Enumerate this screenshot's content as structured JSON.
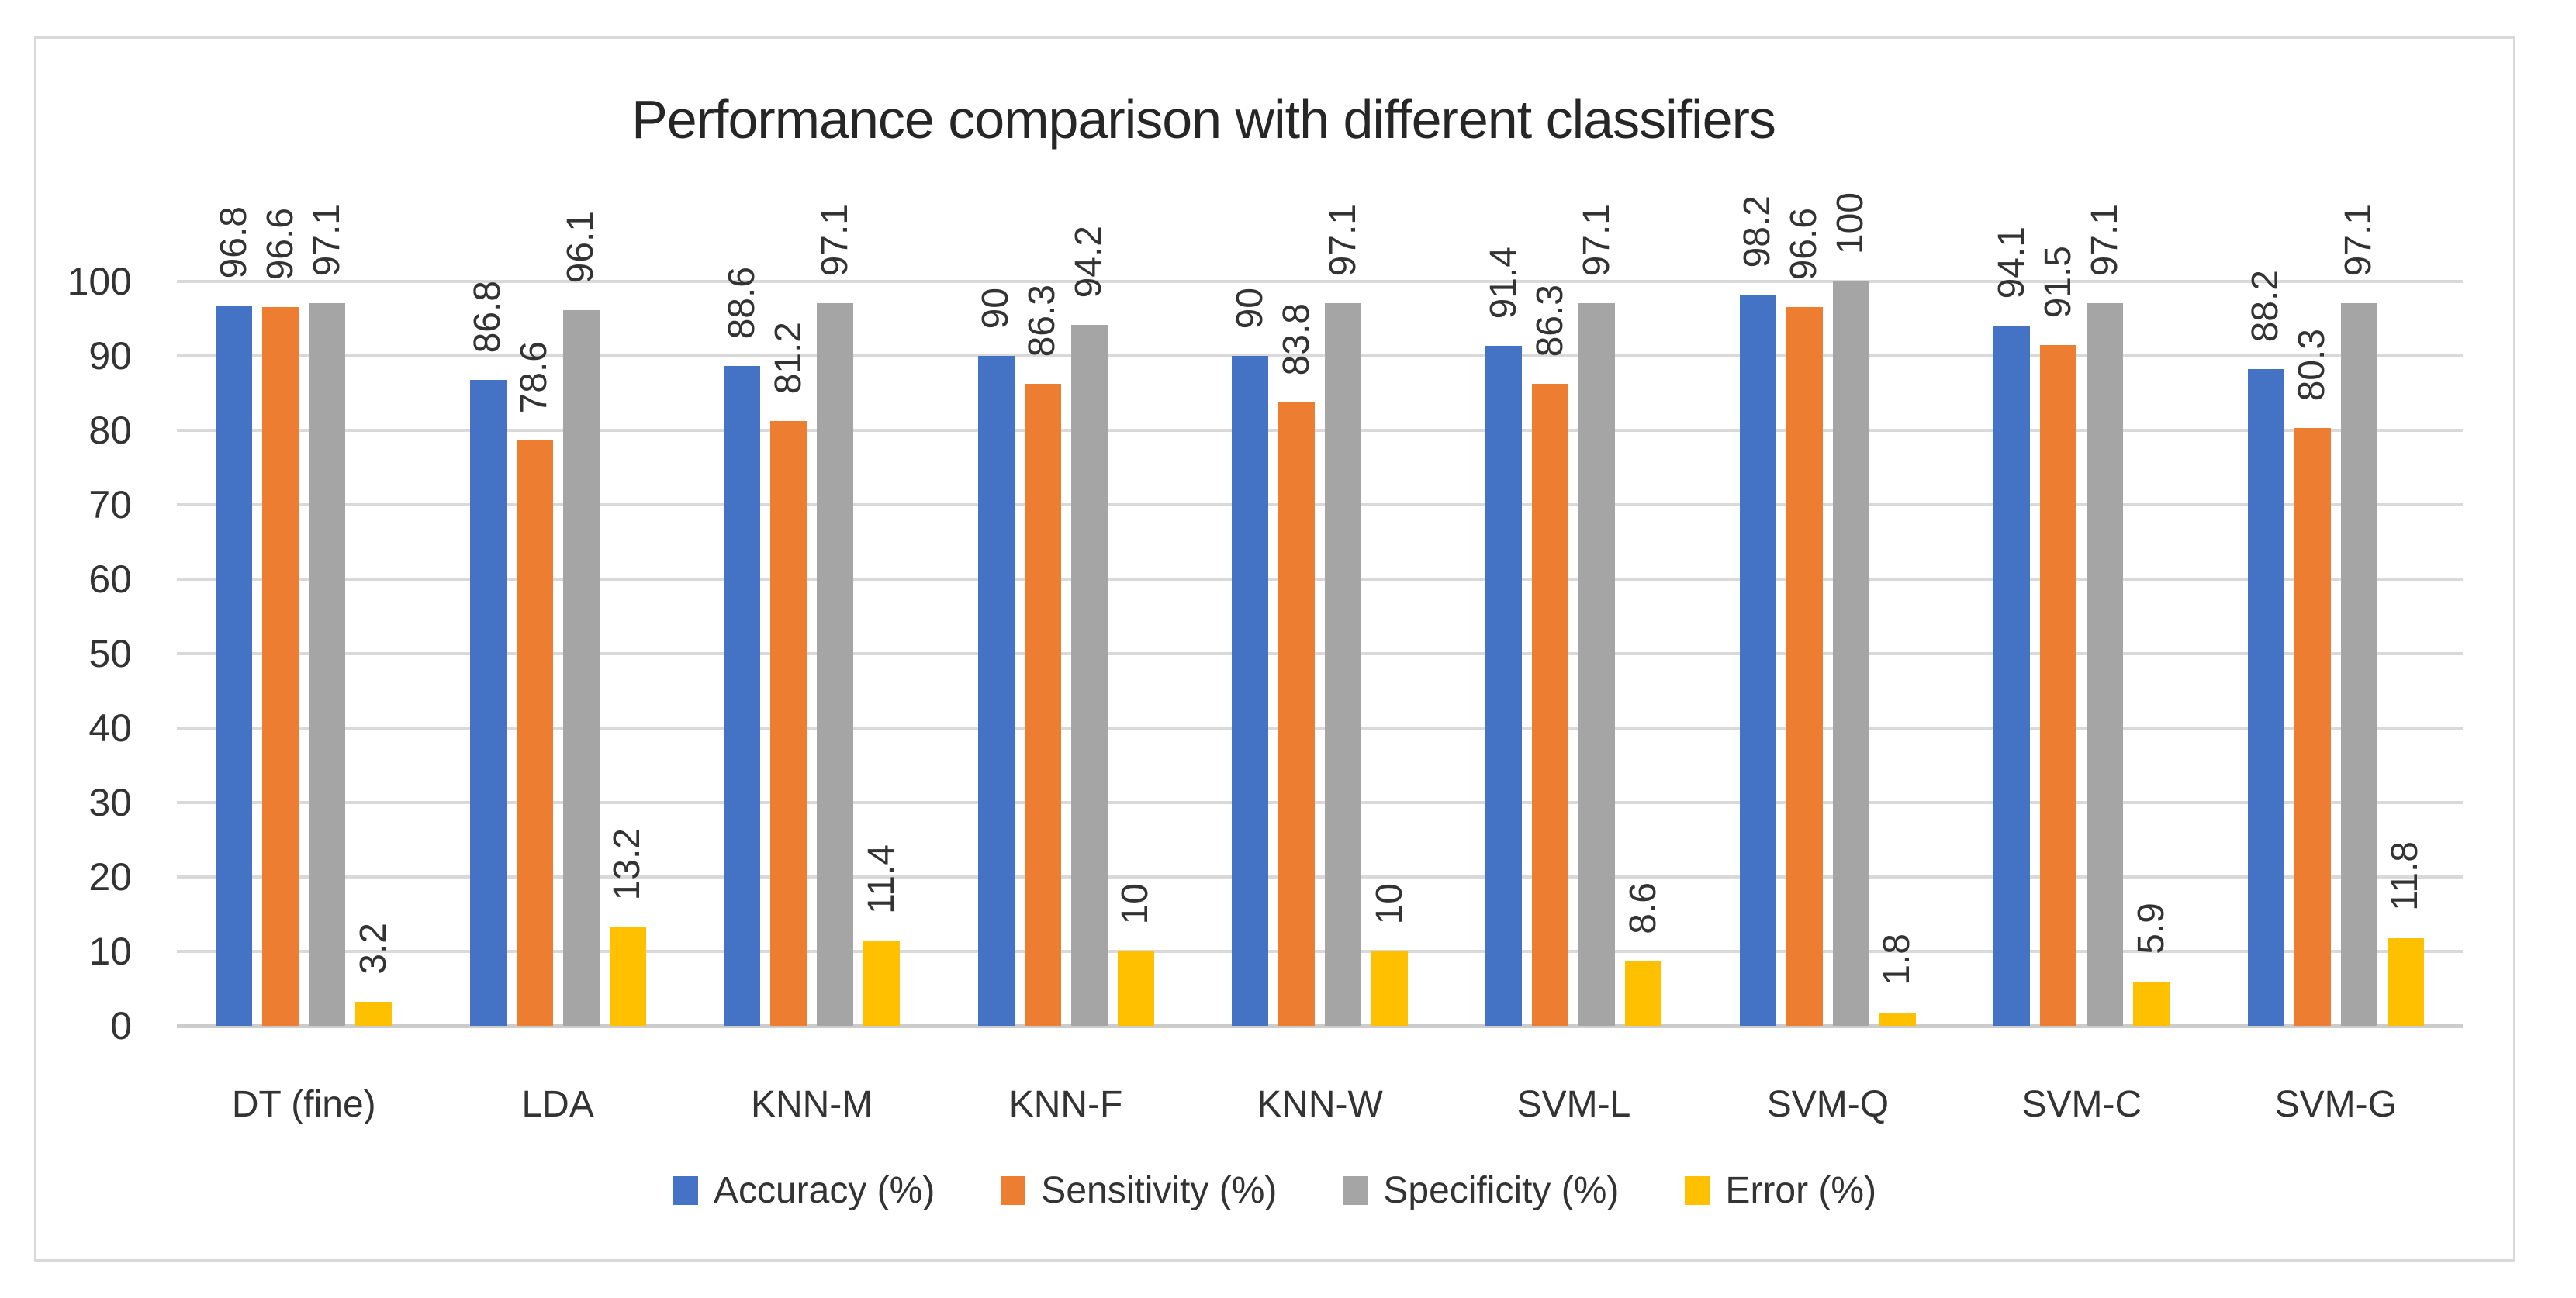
{
  "title": "Performance comparison with different classifiers",
  "colors": {
    "accuracy": "#4472C4",
    "sensitivity": "#ED7D31",
    "specificity": "#A5A5A5",
    "error": "#FFC000",
    "gridline": "#D9D9D9",
    "axis_line": "#CCCCCC",
    "frame_border": "#D9D9D9",
    "text": "#333333",
    "title_text": "#262626"
  },
  "y_axis": {
    "min": 0,
    "max": 100,
    "step": 10,
    "tick_labels": [
      "0",
      "10",
      "20",
      "30",
      "40",
      "50",
      "60",
      "70",
      "80",
      "90",
      "100"
    ]
  },
  "legend": {
    "position": "bottom",
    "items": [
      "Accuracy (%)",
      "Sensitivity (%)",
      "Specificity (%)",
      "Error (%)"
    ]
  },
  "chart_data": {
    "type": "bar",
    "title": "Performance comparison with different classifiers",
    "categories": [
      "DT (fine)",
      "LDA",
      "KNN-M",
      "KNN-F",
      "KNN-W",
      "SVM-L",
      "SVM-Q",
      "SVM-C",
      "SVM-G"
    ],
    "series": [
      {
        "name": "Accuracy (%)",
        "color": "#4472C4",
        "values": [
          96.8,
          86.8,
          88.6,
          90,
          90,
          91.4,
          98.2,
          94.1,
          88.2
        ]
      },
      {
        "name": "Sensitivity (%)",
        "color": "#ED7D31",
        "values": [
          96.6,
          78.6,
          81.2,
          86.3,
          83.8,
          86.3,
          96.6,
          91.5,
          80.3
        ]
      },
      {
        "name": "Specificity (%)",
        "color": "#A5A5A5",
        "values": [
          97.1,
          96.1,
          97.1,
          94.2,
          97.1,
          97.1,
          100,
          97.1,
          97.1
        ]
      },
      {
        "name": "Error (%)",
        "color": "#FFC000",
        "values": [
          3.2,
          13.2,
          11.4,
          10,
          10,
          8.6,
          1.8,
          5.9,
          11.8
        ]
      }
    ],
    "xlabel": "",
    "ylabel": "",
    "ylim": [
      0,
      100
    ],
    "y_ticks": [
      0,
      10,
      20,
      30,
      40,
      50,
      60,
      70,
      80,
      90,
      100
    ],
    "grid": true,
    "legend_position": "bottom",
    "data_labels": "rotated 90deg, outside end of each bar"
  }
}
